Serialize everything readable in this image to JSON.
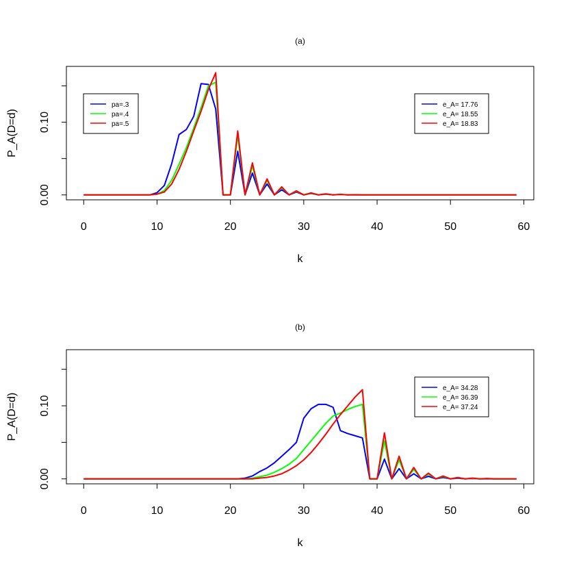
{
  "chart_data": [
    {
      "type": "line",
      "title": "(a)",
      "xlabel": "k",
      "ylabel": "P_A(D=d)",
      "xlim": [
        0,
        59
      ],
      "ylim": [
        0,
        0.17
      ],
      "x_ticks": [
        "0",
        "10",
        "20",
        "30",
        "40",
        "50",
        "60"
      ],
      "y_ticks": [
        "0.00",
        "0.10"
      ],
      "y_ticks_unlabeled": [
        0.05,
        0.15
      ],
      "x": [
        0,
        1,
        2,
        3,
        4,
        5,
        6,
        7,
        8,
        9,
        10,
        11,
        12,
        13,
        14,
        15,
        16,
        17,
        18,
        19,
        20,
        21,
        22,
        23,
        24,
        25,
        26,
        27,
        28,
        29,
        30,
        31,
        32,
        33,
        34,
        35,
        36,
        37,
        38,
        39,
        40,
        41,
        42,
        43,
        44,
        45,
        46,
        47,
        48,
        49,
        50,
        51,
        52,
        53,
        54,
        55,
        56,
        57,
        58,
        59
      ],
      "series": [
        {
          "name": "pa=.3",
          "color": "#0000FF",
          "values": [
            0,
            0,
            0,
            0,
            0,
            0,
            0,
            0,
            0,
            0,
            0.003,
            0.013,
            0.043,
            0.083,
            0.09,
            0.108,
            0.153,
            0.152,
            0.118,
            0,
            0,
            0.06,
            0,
            0.03,
            0,
            0.015,
            0,
            0.007,
            0,
            0.004,
            0,
            0.002,
            0,
            0.001,
            0,
            0.0005,
            0,
            0,
            0,
            0,
            0,
            0,
            0,
            0,
            0,
            0,
            0,
            0,
            0,
            0,
            0,
            0,
            0,
            0,
            0,
            0,
            0,
            0,
            0,
            0
          ]
        },
        {
          "name": "pa=.4",
          "color": "#00FF00",
          "values": [
            0,
            0,
            0,
            0,
            0,
            0,
            0,
            0,
            0,
            0,
            0.001,
            0.006,
            0.02,
            0.042,
            0.065,
            0.092,
            0.12,
            0.15,
            0.155,
            0,
            0,
            0.082,
            0,
            0.04,
            0,
            0.02,
            0,
            0.01,
            0,
            0.005,
            0,
            0.0025,
            0,
            0.0012,
            0,
            0.0006,
            0,
            0.0003,
            0,
            0,
            0,
            0,
            0,
            0,
            0,
            0,
            0,
            0,
            0,
            0,
            0,
            0,
            0,
            0,
            0,
            0,
            0,
            0,
            0,
            0
          ]
        },
        {
          "name": "pa=.5",
          "color": "#FF0000",
          "values": [
            0,
            0,
            0,
            0,
            0,
            0,
            0,
            0,
            0,
            0,
            0.001,
            0.004,
            0.015,
            0.035,
            0.06,
            0.088,
            0.115,
            0.145,
            0.168,
            0,
            0,
            0.088,
            0,
            0.044,
            0,
            0.022,
            0,
            0.011,
            0,
            0.0055,
            0,
            0.0028,
            0,
            0.0014,
            0,
            0.0007,
            0,
            0.0003,
            0,
            0,
            0,
            0,
            0,
            0,
            0,
            0,
            0,
            0,
            0,
            0,
            0,
            0,
            0,
            0,
            0,
            0,
            0,
            0,
            0,
            0
          ]
        }
      ],
      "legends": [
        {
          "placement": "top-left",
          "entries": [
            {
              "label": "pa=.3",
              "color": "#0000FF"
            },
            {
              "label": "pa=.4",
              "color": "#00FF00"
            },
            {
              "label": "pa=.5",
              "color": "#FF0000"
            }
          ]
        },
        {
          "placement": "top-right",
          "entries": [
            {
              "label": "e_A= 17.76",
              "color": "#0000FF"
            },
            {
              "label": "e_A= 18.55",
              "color": "#00FF00"
            },
            {
              "label": "e_A= 18.83",
              "color": "#FF0000"
            }
          ]
        }
      ]
    },
    {
      "type": "line",
      "title": "(b)",
      "xlabel": "k",
      "ylabel": "P_A(D=d)",
      "xlim": [
        0,
        59
      ],
      "ylim": [
        0,
        0.17
      ],
      "x_ticks": [
        "0",
        "10",
        "20",
        "30",
        "40",
        "50",
        "60"
      ],
      "y_ticks": [
        "0.00",
        "0.10"
      ],
      "y_ticks_unlabeled": [
        0.05,
        0.15
      ],
      "x": [
        0,
        1,
        2,
        3,
        4,
        5,
        6,
        7,
        8,
        9,
        10,
        11,
        12,
        13,
        14,
        15,
        16,
        17,
        18,
        19,
        20,
        21,
        22,
        23,
        24,
        25,
        26,
        27,
        28,
        29,
        30,
        31,
        32,
        33,
        34,
        35,
        36,
        37,
        38,
        39,
        40,
        41,
        42,
        43,
        44,
        45,
        46,
        47,
        48,
        49,
        50,
        51,
        52,
        53,
        54,
        55,
        56,
        57,
        58,
        59
      ],
      "series": [
        {
          "name": "e_A= 34.28",
          "color": "#0000FF",
          "values": [
            0,
            0,
            0,
            0,
            0,
            0,
            0,
            0,
            0,
            0,
            0,
            0,
            0,
            0,
            0,
            0,
            0,
            0,
            0,
            0,
            0,
            0,
            0.001,
            0.004,
            0.01,
            0.015,
            0.022,
            0.031,
            0.04,
            0.05,
            0.083,
            0.096,
            0.102,
            0.102,
            0.098,
            0.066,
            0.062,
            0.059,
            0.056,
            0,
            0,
            0.027,
            0,
            0.014,
            0,
            0.007,
            0,
            0.0035,
            0,
            0.0018,
            0,
            0.0009,
            0,
            0.0004,
            0,
            0,
            0,
            0,
            0,
            0
          ]
        },
        {
          "name": "e_A= 36.39",
          "color": "#00FF00",
          "values": [
            0,
            0,
            0,
            0,
            0,
            0,
            0,
            0,
            0,
            0,
            0,
            0,
            0,
            0,
            0,
            0,
            0,
            0,
            0,
            0,
            0,
            0,
            0,
            0.001,
            0.003,
            0.005,
            0.009,
            0.014,
            0.02,
            0.028,
            0.04,
            0.052,
            0.064,
            0.076,
            0.086,
            0.09,
            0.095,
            0.099,
            0.102,
            0,
            0,
            0.052,
            0,
            0.026,
            0,
            0.013,
            0,
            0.0065,
            0,
            0.0032,
            0,
            0.0016,
            0,
            0.0008,
            0,
            0.0004,
            0,
            0,
            0,
            0
          ]
        },
        {
          "name": "e_A= 37.24",
          "color": "#FF0000",
          "values": [
            0,
            0,
            0,
            0,
            0,
            0,
            0,
            0,
            0,
            0,
            0,
            0,
            0,
            0,
            0,
            0,
            0,
            0,
            0,
            0,
            0,
            0,
            0,
            0,
            0.001,
            0.002,
            0.004,
            0.007,
            0.012,
            0.018,
            0.026,
            0.036,
            0.048,
            0.061,
            0.075,
            0.088,
            0.1,
            0.112,
            0.122,
            0,
            0,
            0.063,
            0,
            0.031,
            0,
            0.0155,
            0,
            0.0078,
            0,
            0.0039,
            0,
            0.0019,
            0,
            0.001,
            0,
            0.0005,
            0,
            0,
            0,
            0
          ]
        }
      ],
      "legends": [
        {
          "placement": "top-right",
          "entries": [
            {
              "label": "e_A= 34.28",
              "color": "#0000FF"
            },
            {
              "label": "e_A= 36.39",
              "color": "#00FF00"
            },
            {
              "label": "e_A= 37.24",
              "color": "#FF0000"
            }
          ]
        }
      ]
    }
  ]
}
